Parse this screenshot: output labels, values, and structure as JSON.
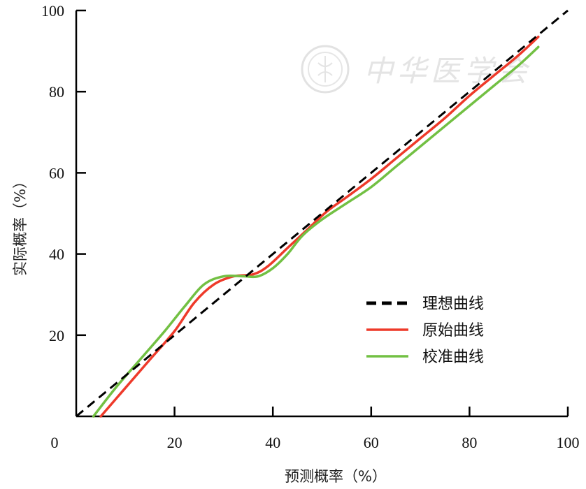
{
  "chart_data": {
    "type": "line",
    "xlabel": "预测概率（%）",
    "ylabel": "实际概率（%）",
    "xlim": [
      0,
      100
    ],
    "ylim": [
      0,
      100
    ],
    "x_ticks": [
      0,
      20,
      40,
      60,
      80,
      100
    ],
    "y_ticks": [
      20,
      40,
      60,
      80,
      100
    ],
    "grid": false,
    "legend_position": "bottom-right",
    "watermark": "中华医学会",
    "series": [
      {
        "name": "理想曲线",
        "color": "#000000",
        "style": "dashed",
        "x": [
          0,
          100
        ],
        "y": [
          0,
          100
        ]
      },
      {
        "name": "原始曲线",
        "color": "#ee3a2a",
        "style": "solid",
        "x": [
          5,
          10,
          15,
          20,
          24,
          28,
          32,
          36,
          39,
          43,
          47,
          51,
          55,
          60,
          65,
          70,
          75,
          80,
          85,
          90,
          94
        ],
        "y": [
          0,
          7,
          14,
          21,
          28,
          32.5,
          34.5,
          35,
          37,
          41.5,
          46,
          50.5,
          54,
          58.5,
          63.5,
          68.5,
          73.5,
          79,
          84,
          89,
          93.5
        ]
      },
      {
        "name": "校准曲线",
        "color": "#72c043",
        "style": "solid",
        "x": [
          3.5,
          8,
          13,
          18,
          22,
          26,
          30,
          34,
          37,
          40,
          43,
          46,
          50,
          55,
          60,
          65,
          70,
          75,
          80,
          85,
          90,
          94
        ],
        "y": [
          0,
          7,
          14,
          21,
          27,
          32.5,
          34.5,
          34.5,
          34.5,
          36.5,
          40,
          44.5,
          48.5,
          52.5,
          56.5,
          61.5,
          66.5,
          71.5,
          76.5,
          81.5,
          86.5,
          91
        ]
      }
    ]
  }
}
